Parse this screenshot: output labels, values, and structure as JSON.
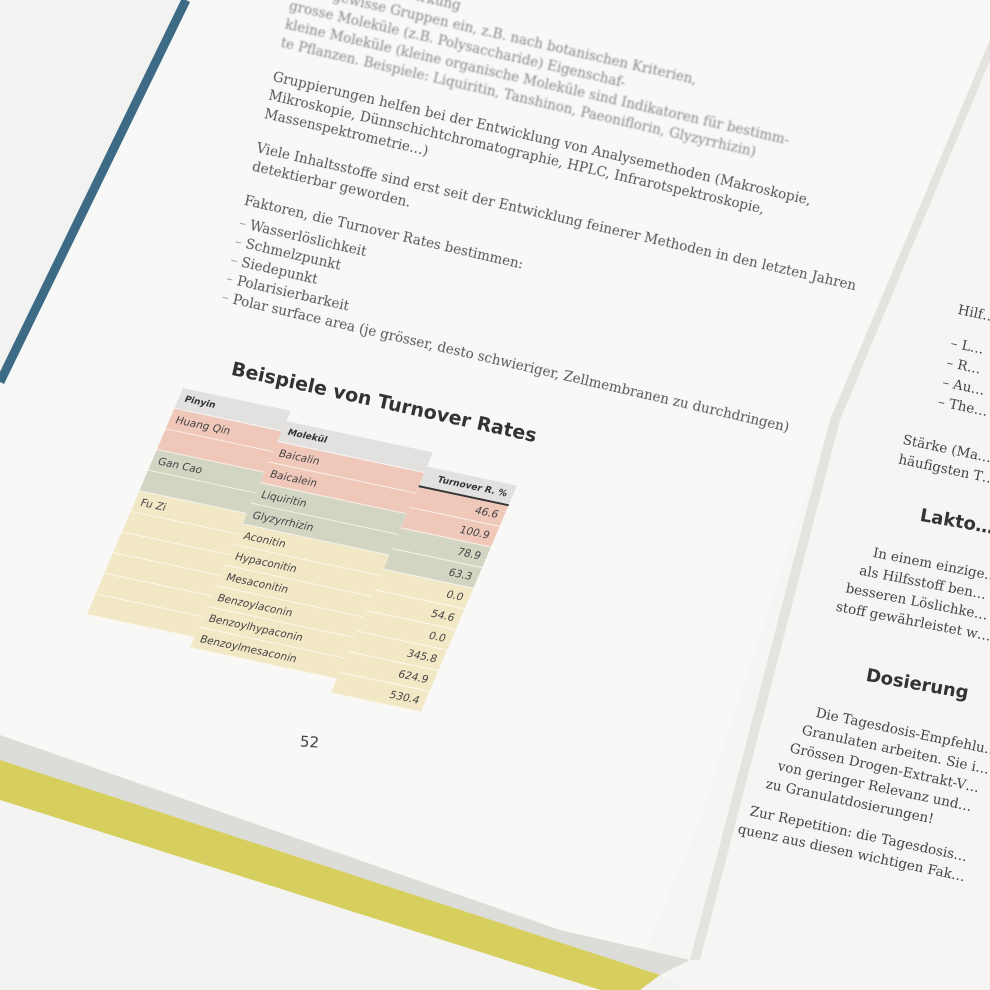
{
  "left_page": {
    "paragraphs_top": [
      "… scheinenden Wirkung",
      "…) in gewisse Gruppen ein, z.B. nach botanischen Kriterien,",
      "grosse Moleküle (z.B. Polysaccharide) Eigenschaf-",
      "kleine Moleküle (kleine organische Moleküle sind Indikatoren für bestimm-",
      "te Pflanzen. Beispiele: Liquiritin, Tanshinon, Paeoniflorin, Glyzyrrhizin)"
    ],
    "paragraph_2": "Gruppierungen helfen bei der Entwicklung von Analysemethoden (Makroskopie, Mikroskopie, Dünnschichtchromatographie, HPLC, Infrarotspektroskopie, Massenspektrometrie…)",
    "paragraph_3": "Viele Inhaltsstoffe sind erst seit der Entwicklung feinerer Methoden in den letzten Jahren detektierbar geworden.",
    "factors_intro": "Faktoren, die Turnover Rates bestimmen:",
    "factors": [
      "Wasserlöslichkeit",
      "Schmelzpunkt",
      "Siedepunkt",
      "Polarisierbarkeit",
      "Polar surface area (je grösser, desto schwieriger, Zellmembranen zu durchdringen)"
    ],
    "table_title": "Beispiele von Turnover Rates",
    "table": {
      "headers": {
        "pinyin": "Pinyin",
        "molecule": "Molekül",
        "value": "Turnover R. %"
      },
      "pinyin": [
        "Huang Qin",
        "",
        "Gan Cao",
        "",
        "Fu Zi",
        "",
        "",
        "",
        "",
        ""
      ],
      "molecules": [
        "Baicalin",
        "Baicalein",
        "Liquiritin",
        "Glyzyrrhizin",
        "Aconitin",
        "Hypaconitin",
        "Mesaconitin",
        "Benzoylaconin",
        "Benzoylhypaconin",
        "Benzoylmesaconin"
      ],
      "values": [
        "46.6",
        "100.9",
        "78.9",
        "63.3",
        "0.0",
        "54.6",
        "0.0",
        "345.8",
        "624.9",
        "530.4"
      ],
      "group_colors": {
        "huang_qin": "#efc8ba",
        "gan_cao": "#d3d5c3",
        "fu_zi": "#f3e8c6"
      }
    },
    "page_number": "52"
  },
  "right_page": {
    "intro": "Hilf…",
    "list": [
      "L…",
      "R…",
      "Au…",
      "The…"
    ],
    "para_1": [
      "Stärke (Ma…",
      "häufigsten T…"
    ],
    "heading_1": "Lakto…",
    "para_2": [
      "In einem einzige…",
      "als Hilfsstoff ben…",
      "besseren Löslichke…",
      "stoff gewährleistet w…"
    ],
    "heading_2": "Dosierung",
    "para_3": [
      "Die Tagesdosis-Empfehlu…",
      "Granulaten arbeiten. Sie i…",
      "Grössen Drogen-Extrakt-V…",
      "von geringer Relevanz und…",
      "zu Granulatdosierungen!"
    ],
    "para_4": [
      "Zur Repetition: die Tagesdosis…",
      "quenz aus diesen wichtigen Fak…"
    ]
  },
  "colors": {
    "cover_spine": "#3d6a85",
    "cover_bottom": "#d6cf5e",
    "page": "#f7f7f6"
  }
}
